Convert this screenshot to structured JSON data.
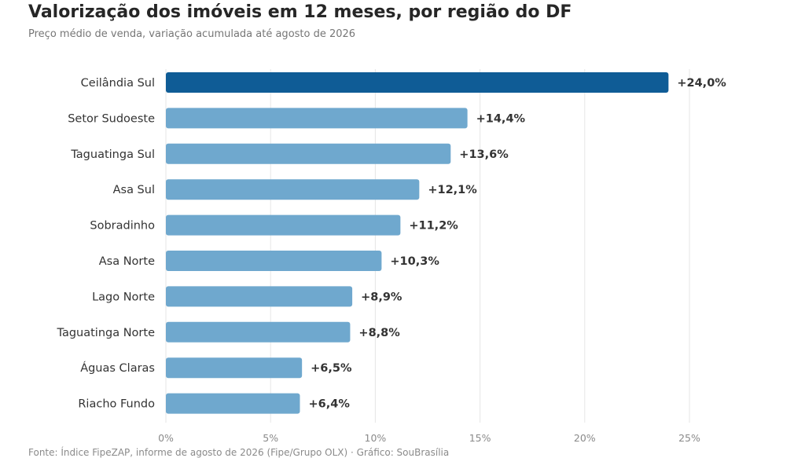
{
  "header": {
    "title": "Valorização dos imóveis em 12 meses, por região do DF",
    "subtitle": "Preço médio de venda, variação acumulada até agosto de 2026"
  },
  "footer": {
    "source": "Fonte: Índice FipeZAP, informe de agosto de 2026 (Fipe/Grupo OLX) · Gráfico: SouBrasília"
  },
  "chart_data": {
    "type": "bar",
    "orientation": "horizontal",
    "categories": [
      "Ceilândia Sul",
      "Setor Sudoeste",
      "Taguatinga Sul",
      "Asa Sul",
      "Sobradinho",
      "Asa Norte",
      "Lago Norte",
      "Taguatinga Norte",
      "Águas Claras",
      "Riacho Fundo"
    ],
    "values": [
      24.0,
      14.4,
      13.6,
      12.1,
      11.2,
      10.3,
      8.9,
      8.8,
      6.5,
      6.4
    ],
    "value_labels": [
      "+24,0%",
      "+14,4%",
      "+13,6%",
      "+12,1%",
      "+11,2%",
      "+10,3%",
      "+8,9%",
      "+8,8%",
      "+6,5%",
      "+6,4%"
    ],
    "xlim": [
      0,
      25
    ],
    "ticks": [
      0,
      5,
      10,
      15,
      20,
      25
    ],
    "tick_labels": [
      "0%",
      "5%",
      "10%",
      "15%",
      "20%",
      "25%"
    ],
    "grid": "vertical",
    "highlight_index": 0,
    "colors": {
      "highlight": "#0f5c96",
      "default": "#6fa8ce",
      "grid": "#e6e6e6"
    }
  }
}
